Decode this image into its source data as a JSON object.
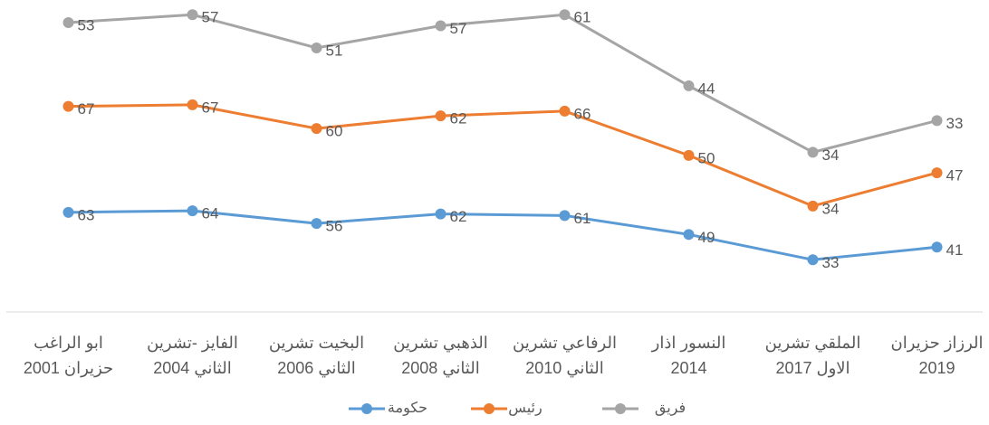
{
  "chart_data": {
    "type": "line",
    "stacked": true,
    "categories": [
      [
        "ابو الراغب",
        "حزيران 2001"
      ],
      [
        "الفايز -تشرين",
        "الثاني 2004"
      ],
      [
        "البخيت تشرين",
        "الثاني 2006"
      ],
      [
        "الذهبي تشرين",
        "الثاني 2008"
      ],
      [
        "الرفاعي تشرين",
        "الثاني 2010"
      ],
      [
        "النسور اذار",
        "2014"
      ],
      [
        "الملقي تشرين",
        "الاول 2017"
      ],
      [
        "الرزاز حزيران",
        "2019"
      ]
    ],
    "series": [
      {
        "name": "حكومة",
        "color": "#5b9bd5",
        "values": [
          63,
          64,
          56,
          62,
          61,
          49,
          33,
          41
        ]
      },
      {
        "name": "رئيس",
        "color": "#ed7d31",
        "values": [
          67,
          67,
          60,
          62,
          66,
          50,
          34,
          47
        ]
      },
      {
        "name": "فريق",
        "color": "#a5a5a5",
        "values": [
          53,
          57,
          51,
          57,
          61,
          44,
          34,
          33
        ]
      }
    ],
    "ylim": [
      0,
      195
    ],
    "legend": "bottom"
  }
}
